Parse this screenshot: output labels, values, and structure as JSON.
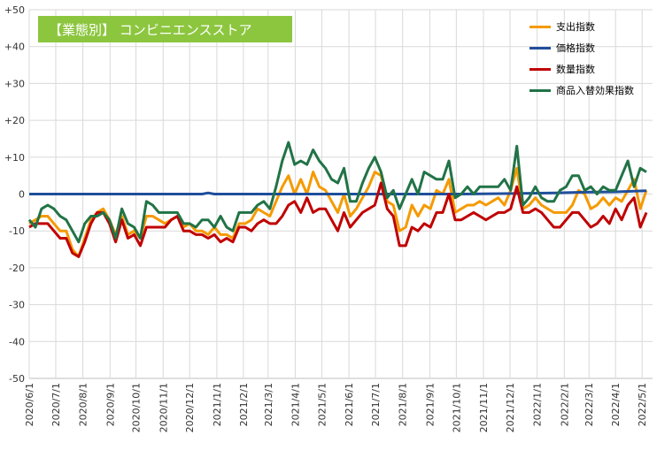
{
  "title_box": {
    "label": "【業態別】 コンビニエンスストア",
    "color": "#8cc63f"
  },
  "chart_data": {
    "type": "line",
    "title": "【業態別】 コンビニエンスストア",
    "ylim": [
      -50,
      50
    ],
    "yticks": [
      "+50",
      "+40",
      "+30",
      "+20",
      "+10",
      "0",
      "-10",
      "-20",
      "-30",
      "-40",
      "-50"
    ],
    "ytick_values": [
      50,
      40,
      30,
      20,
      10,
      0,
      -10,
      -20,
      -30,
      -40,
      -50
    ],
    "xlim": [
      0,
      101
    ],
    "xtick_labels": [
      "2020/6/1",
      "2020/7/1",
      "2020/8/1",
      "2020/9/1",
      "2020/10/1",
      "2020/11/1",
      "2020/12/1",
      "2021/1/1",
      "2021/2/1",
      "2021/3/1",
      "2021/4/1",
      "2021/5/1",
      "2021/6/1",
      "2021/7/1",
      "2021/8/1",
      "2021/9/1",
      "2021/10/1",
      "2021/11/1",
      "2021/12/1",
      "2022/1/1",
      "2022/2/1",
      "2022/3/1",
      "2022/4/1",
      "2022/5/1"
    ],
    "xtick_positions": [
      0,
      4.3,
      8.7,
      13.1,
      17.3,
      21.7,
      26,
      30.4,
      34.7,
      38.7,
      43.1,
      47.4,
      51.8,
      56.1,
      60.5,
      64.9,
      69.2,
      73.6,
      77.9,
      82.3,
      86.7,
      90.7,
      95,
      99.3
    ],
    "grid": true,
    "legend_position": "top-right",
    "series": [
      {
        "name": "支出指数",
        "color": "#f59a00",
        "points": [
          [
            0,
            -8
          ],
          [
            1,
            -7
          ],
          [
            2,
            -6
          ],
          [
            3,
            -6
          ],
          [
            4,
            -8
          ],
          [
            5,
            -10
          ],
          [
            6,
            -10
          ],
          [
            7,
            -15
          ],
          [
            8,
            -17
          ],
          [
            9,
            -12
          ],
          [
            10,
            -7
          ],
          [
            11,
            -5
          ],
          [
            12,
            -4
          ],
          [
            13,
            -7
          ],
          [
            14,
            -11
          ],
          [
            15,
            -6
          ],
          [
            16,
            -11
          ],
          [
            17,
            -10
          ],
          [
            18,
            -12
          ],
          [
            19,
            -6
          ],
          [
            20,
            -6
          ],
          [
            21,
            -7
          ],
          [
            22,
            -8
          ],
          [
            23,
            -7
          ],
          [
            24,
            -6
          ],
          [
            25,
            -9
          ],
          [
            26,
            -8
          ],
          [
            27,
            -10
          ],
          [
            28,
            -10
          ],
          [
            29,
            -11
          ],
          [
            30,
            -9
          ],
          [
            31,
            -11
          ],
          [
            32,
            -11
          ],
          [
            33,
            -12
          ],
          [
            34,
            -8
          ],
          [
            35,
            -8
          ],
          [
            36,
            -7
          ],
          [
            37,
            -4
          ],
          [
            38,
            -5
          ],
          [
            39,
            -6
          ],
          [
            40,
            -2
          ],
          [
            41,
            2
          ],
          [
            42,
            5
          ],
          [
            43,
            0
          ],
          [
            44,
            4
          ],
          [
            45,
            0
          ],
          [
            46,
            6
          ],
          [
            47,
            2
          ],
          [
            48,
            1
          ],
          [
            49,
            -2
          ],
          [
            50,
            -5
          ],
          [
            51,
            0
          ],
          [
            52,
            -6
          ],
          [
            53,
            -4
          ],
          [
            54,
            -1
          ],
          [
            55,
            2
          ],
          [
            56,
            6
          ],
          [
            57,
            5
          ],
          [
            58,
            -2
          ],
          [
            59,
            -3
          ],
          [
            60,
            -10
          ],
          [
            61,
            -9
          ],
          [
            62,
            -3
          ],
          [
            63,
            -6
          ],
          [
            64,
            -3
          ],
          [
            65,
            -4
          ],
          [
            66,
            1
          ],
          [
            67,
            0
          ],
          [
            68,
            4
          ],
          [
            69,
            -5
          ],
          [
            70,
            -4
          ],
          [
            71,
            -3
          ],
          [
            72,
            -3
          ],
          [
            73,
            -2
          ],
          [
            74,
            -3
          ],
          [
            75,
            -2
          ],
          [
            76,
            -1
          ],
          [
            77,
            -3
          ],
          [
            78,
            1
          ],
          [
            79,
            7
          ],
          [
            80,
            -4
          ],
          [
            81,
            -3
          ],
          [
            82,
            -1
          ],
          [
            83,
            -3
          ],
          [
            84,
            -4
          ],
          [
            85,
            -5
          ],
          [
            86,
            -5
          ],
          [
            87,
            -5
          ],
          [
            88,
            -3
          ],
          [
            89,
            1
          ],
          [
            90,
            0
          ],
          [
            91,
            -4
          ],
          [
            92,
            -3
          ],
          [
            93,
            -1
          ],
          [
            94,
            -3
          ],
          [
            95,
            -1
          ],
          [
            96,
            -2
          ],
          [
            97,
            1
          ],
          [
            98,
            4
          ],
          [
            99,
            -4
          ],
          [
            100,
            1
          ]
        ]
      },
      {
        "name": "価格指数",
        "color": "#1f4e9c",
        "points": [
          [
            0,
            0
          ],
          [
            10,
            0
          ],
          [
            20,
            0
          ],
          [
            28,
            0
          ],
          [
            29,
            0.3
          ],
          [
            30,
            0
          ],
          [
            40,
            0
          ],
          [
            50,
            0
          ],
          [
            60,
            0
          ],
          [
            70,
            0
          ],
          [
            80,
            0.2
          ],
          [
            85,
            0.3
          ],
          [
            90,
            0.5
          ],
          [
            95,
            0.6
          ],
          [
            100,
            0.9
          ]
        ]
      },
      {
        "name": "数量指数",
        "color": "#c00000",
        "points": [
          [
            0,
            -9
          ],
          [
            1,
            -8
          ],
          [
            2,
            -8
          ],
          [
            3,
            -8
          ],
          [
            4,
            -10
          ],
          [
            5,
            -12
          ],
          [
            6,
            -12
          ],
          [
            7,
            -16
          ],
          [
            8,
            -17
          ],
          [
            9,
            -13
          ],
          [
            10,
            -8
          ],
          [
            11,
            -5
          ],
          [
            12,
            -5
          ],
          [
            13,
            -8
          ],
          [
            14,
            -13
          ],
          [
            15,
            -7
          ],
          [
            16,
            -12
          ],
          [
            17,
            -11
          ],
          [
            18,
            -14
          ],
          [
            19,
            -9
          ],
          [
            20,
            -9
          ],
          [
            21,
            -9
          ],
          [
            22,
            -9
          ],
          [
            23,
            -7
          ],
          [
            24,
            -6
          ],
          [
            25,
            -10
          ],
          [
            26,
            -10
          ],
          [
            27,
            -11
          ],
          [
            28,
            -11
          ],
          [
            29,
            -12
          ],
          [
            30,
            -11
          ],
          [
            31,
            -13
          ],
          [
            32,
            -12
          ],
          [
            33,
            -13
          ],
          [
            34,
            -9
          ],
          [
            35,
            -9
          ],
          [
            36,
            -10
          ],
          [
            37,
            -8
          ],
          [
            38,
            -7
          ],
          [
            39,
            -8
          ],
          [
            40,
            -8
          ],
          [
            41,
            -6
          ],
          [
            42,
            -3
          ],
          [
            43,
            -2
          ],
          [
            44,
            -5
          ],
          [
            45,
            -1
          ],
          [
            46,
            -5
          ],
          [
            47,
            -4
          ],
          [
            48,
            -4
          ],
          [
            49,
            -7
          ],
          [
            50,
            -10
          ],
          [
            51,
            -5
          ],
          [
            52,
            -9
          ],
          [
            53,
            -7
          ],
          [
            54,
            -5
          ],
          [
            55,
            -4
          ],
          [
            56,
            -3
          ],
          [
            57,
            3
          ],
          [
            58,
            -4
          ],
          [
            59,
            -6
          ],
          [
            60,
            -14
          ],
          [
            61,
            -14
          ],
          [
            62,
            -9
          ],
          [
            63,
            -10
          ],
          [
            64,
            -8
          ],
          [
            65,
            -9
          ],
          [
            66,
            -5
          ],
          [
            67,
            -5
          ],
          [
            68,
            0
          ],
          [
            69,
            -7
          ],
          [
            70,
            -7
          ],
          [
            71,
            -6
          ],
          [
            72,
            -5
          ],
          [
            73,
            -6
          ],
          [
            74,
            -7
          ],
          [
            75,
            -6
          ],
          [
            76,
            -5
          ],
          [
            77,
            -5
          ],
          [
            78,
            -4
          ],
          [
            79,
            2
          ],
          [
            80,
            -5
          ],
          [
            81,
            -5
          ],
          [
            82,
            -4
          ],
          [
            83,
            -5
          ],
          [
            84,
            -7
          ],
          [
            85,
            -9
          ],
          [
            86,
            -9
          ],
          [
            87,
            -7
          ],
          [
            88,
            -5
          ],
          [
            89,
            -5
          ],
          [
            90,
            -7
          ],
          [
            91,
            -9
          ],
          [
            92,
            -8
          ],
          [
            93,
            -6
          ],
          [
            94,
            -8
          ],
          [
            95,
            -4
          ],
          [
            96,
            -7
          ],
          [
            97,
            -3
          ],
          [
            98,
            -1
          ],
          [
            99,
            -9
          ],
          [
            100,
            -5
          ]
        ]
      },
      {
        "name": "商品入替効果指数",
        "color": "#217346",
        "points": [
          [
            0,
            -7
          ],
          [
            1,
            -9
          ],
          [
            2,
            -4
          ],
          [
            3,
            -3
          ],
          [
            4,
            -4
          ],
          [
            5,
            -6
          ],
          [
            6,
            -7
          ],
          [
            7,
            -10
          ],
          [
            8,
            -13
          ],
          [
            9,
            -8
          ],
          [
            10,
            -6
          ],
          [
            11,
            -6
          ],
          [
            12,
            -5
          ],
          [
            13,
            -7
          ],
          [
            14,
            -12
          ],
          [
            15,
            -4
          ],
          [
            16,
            -8
          ],
          [
            17,
            -9
          ],
          [
            18,
            -12
          ],
          [
            19,
            -2
          ],
          [
            20,
            -3
          ],
          [
            21,
            -5
          ],
          [
            22,
            -5
          ],
          [
            23,
            -5
          ],
          [
            24,
            -5
          ],
          [
            25,
            -8
          ],
          [
            26,
            -8
          ],
          [
            27,
            -9
          ],
          [
            28,
            -7
          ],
          [
            29,
            -7
          ],
          [
            30,
            -9
          ],
          [
            31,
            -6
          ],
          [
            32,
            -9
          ],
          [
            33,
            -10
          ],
          [
            34,
            -5
          ],
          [
            35,
            -5
          ],
          [
            36,
            -5
          ],
          [
            37,
            -3
          ],
          [
            38,
            -2
          ],
          [
            39,
            -4
          ],
          [
            40,
            2
          ],
          [
            41,
            9
          ],
          [
            42,
            14
          ],
          [
            43,
            8
          ],
          [
            44,
            9
          ],
          [
            45,
            8
          ],
          [
            46,
            12
          ],
          [
            47,
            9
          ],
          [
            48,
            7
          ],
          [
            49,
            4
          ],
          [
            50,
            3
          ],
          [
            51,
            7
          ],
          [
            52,
            -2
          ],
          [
            53,
            -2
          ],
          [
            54,
            3
          ],
          [
            55,
            7
          ],
          [
            56,
            10
          ],
          [
            57,
            6
          ],
          [
            58,
            -1
          ],
          [
            59,
            1
          ],
          [
            60,
            -4
          ],
          [
            61,
            0
          ],
          [
            62,
            4
          ],
          [
            63,
            0
          ],
          [
            64,
            6
          ],
          [
            65,
            5
          ],
          [
            66,
            4
          ],
          [
            67,
            4
          ],
          [
            68,
            9
          ],
          [
            69,
            -1
          ],
          [
            70,
            0
          ],
          [
            71,
            2
          ],
          [
            72,
            0
          ],
          [
            73,
            2
          ],
          [
            74,
            2
          ],
          [
            75,
            2
          ],
          [
            76,
            2
          ],
          [
            77,
            4
          ],
          [
            78,
            1
          ],
          [
            79,
            13
          ],
          [
            80,
            -3
          ],
          [
            81,
            -1
          ],
          [
            82,
            2
          ],
          [
            83,
            -1
          ],
          [
            84,
            -2
          ],
          [
            85,
            -2
          ],
          [
            86,
            1
          ],
          [
            87,
            2
          ],
          [
            88,
            5
          ],
          [
            89,
            5
          ],
          [
            90,
            1
          ],
          [
            91,
            2
          ],
          [
            92,
            0
          ],
          [
            93,
            2
          ],
          [
            94,
            1
          ],
          [
            95,
            1
          ],
          [
            96,
            5
          ],
          [
            97,
            9
          ],
          [
            98,
            2
          ],
          [
            99,
            7
          ],
          [
            100,
            6
          ]
        ]
      }
    ]
  }
}
